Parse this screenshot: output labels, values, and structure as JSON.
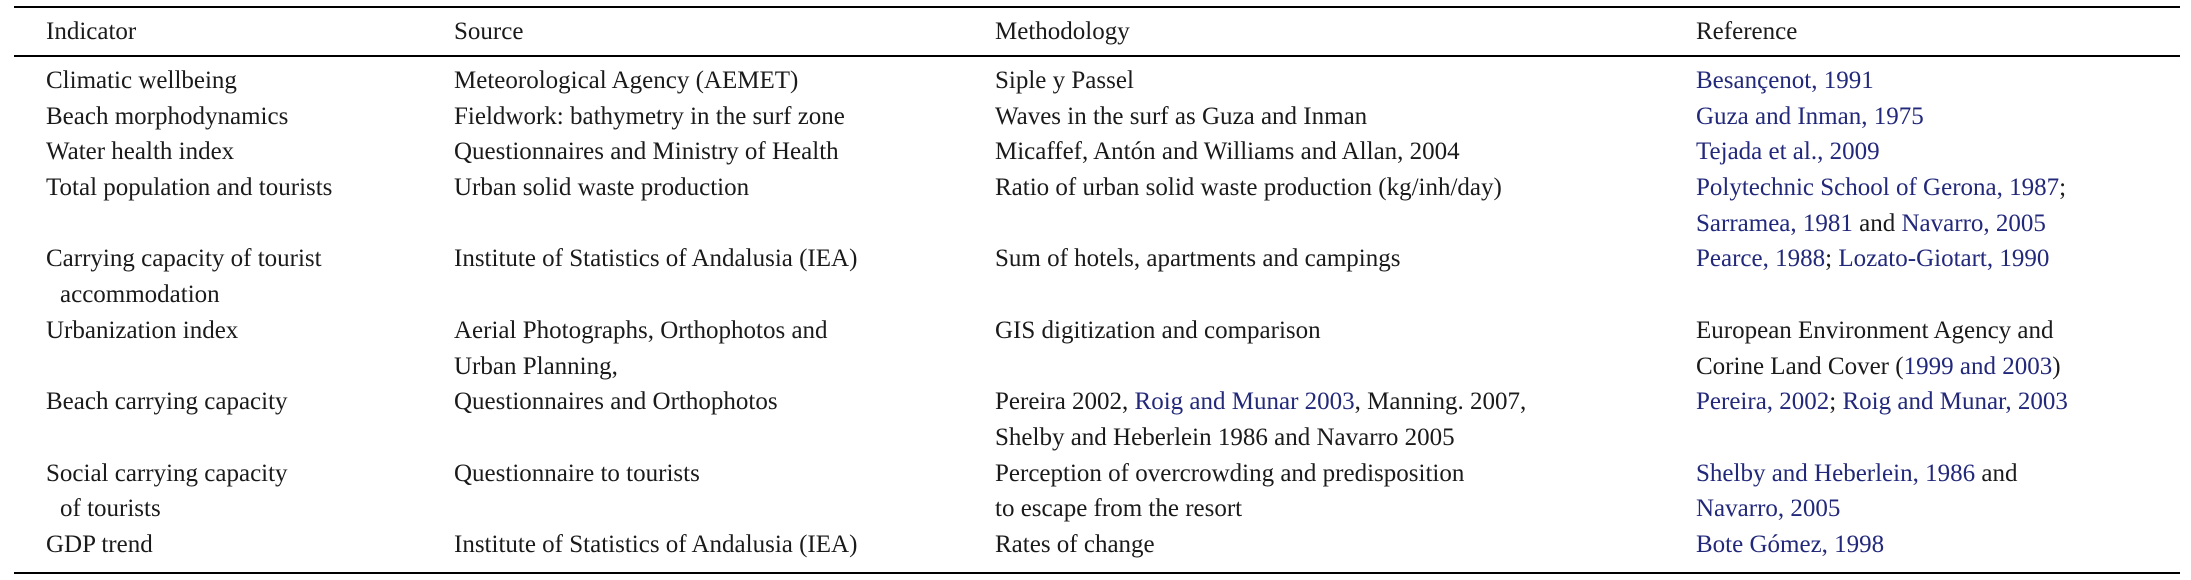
{
  "table": {
    "headers": [
      "Indicator",
      "Source",
      "Methodology",
      "Reference"
    ],
    "rows": [
      [
        "Climatic wellbeing",
        "Meteorological Agency (AEMET)",
        "Siple y Passel",
        [
          [
            {
              "ref": "Besançenot, 1991"
            }
          ]
        ]
      ],
      [
        "Beach morphodynamics",
        "Fieldwork: bathymetry in the surf zone",
        "Waves in the surf as Guza and Inman",
        [
          [
            {
              "ref": "Guza and Inman, 1975"
            }
          ]
        ]
      ],
      [
        "Water health index",
        "Questionnaires and Ministry of Health",
        "Micaffef, Antón and Williams and Allan, 2004",
        [
          [
            {
              "ref": "Tejada et al., 2009"
            }
          ]
        ]
      ],
      [
        "Total population and tourists",
        "Urban solid waste production",
        "Ratio of urban solid waste production (kg/inh/day)",
        [
          [
            {
              "ref": "Polytechnic School of Gerona, 1987"
            },
            ";"
          ],
          [
            {
              "ref": "Sarramea, 1981"
            },
            " and ",
            {
              "ref": "Navarro, 2005"
            }
          ]
        ]
      ],
      [
        [
          "Carrying capacity of tourist",
          "accommodation"
        ],
        "Institute of Statistics of Andalusia (IEA)",
        "Sum of hotels, apartments and campings",
        [
          [
            {
              "ref": "Pearce, 1988"
            },
            "; ",
            {
              "ref": "Lozato-Giotart, 1990"
            }
          ]
        ]
      ],
      [
        "Urbanization index",
        [
          "Aerial Photographs, Orthophotos and",
          "Urban Planning,"
        ],
        "GIS digitization and comparison",
        [
          "European Environment Agency and",
          [
            "Corine Land Cover (",
            {
              "ref": "1999 and 2003"
            },
            ")"
          ]
        ]
      ],
      [
        "Beach carrying capacity",
        "Questionnaires and Orthophotos",
        [
          [
            "Pereira 2002, ",
            {
              "ref": "Roig and Munar 2003"
            },
            ", Manning. 2007,"
          ],
          "Shelby and Heberlein 1986 and Navarro 2005"
        ],
        [
          [
            {
              "ref": "Pereira, 2002"
            },
            "; ",
            {
              "ref": "Roig and Munar, 2003"
            }
          ]
        ]
      ],
      [
        [
          "Social carrying capacity",
          "of tourists"
        ],
        "Questionnaire to tourists",
        [
          "Perception of overcrowding and predisposition",
          "to escape from the resort"
        ],
        [
          [
            {
              "ref": "Shelby and Heberlein, 1986"
            },
            " and"
          ],
          [
            {
              "ref": "Navarro, 2005"
            }
          ]
        ]
      ],
      [
        "GDP trend",
        "Institute of Statistics of Andalusia (IEA)",
        "Rates of change",
        [
          [
            {
              "ref": "Bote Gómez, 1998"
            }
          ]
        ]
      ]
    ]
  }
}
